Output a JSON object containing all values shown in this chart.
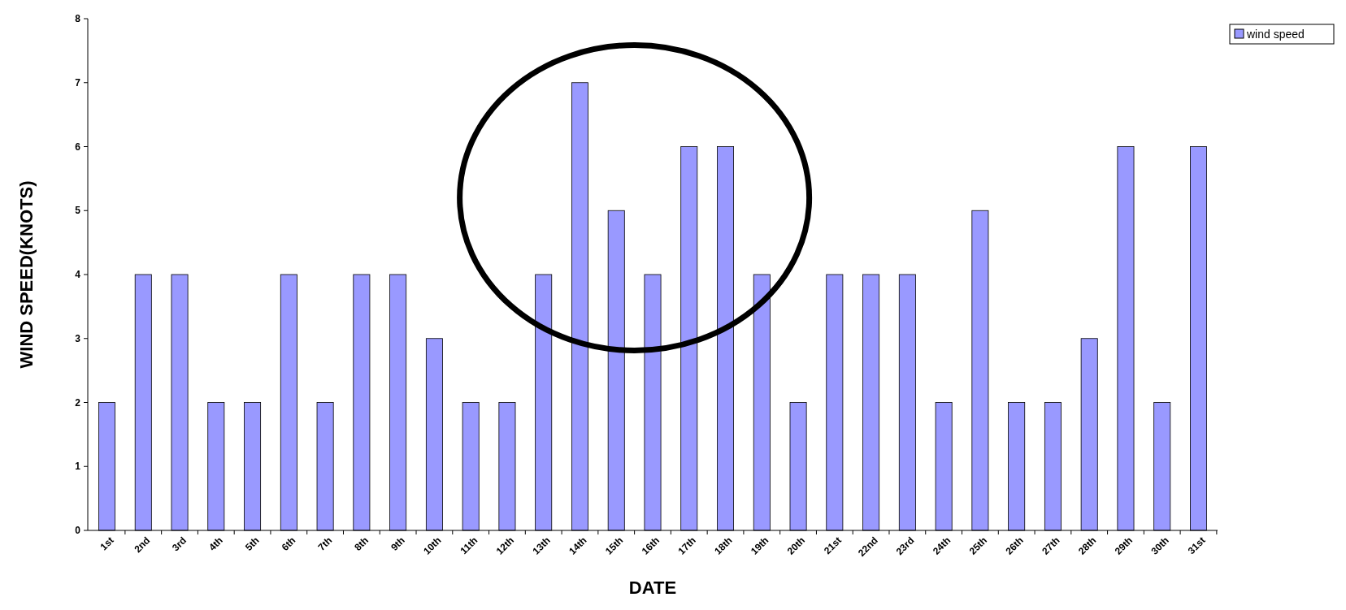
{
  "chart_data": {
    "type": "bar",
    "xlabel": "DATE",
    "ylabel": "WIND SPEED(KNOTS)",
    "categories": [
      "1st",
      "2nd",
      "3rd",
      "4th",
      "5th",
      "6th",
      "7th",
      "8th",
      "9th",
      "10th",
      "11th",
      "12th",
      "13th",
      "14th",
      "15th",
      "16th",
      "17th",
      "18th",
      "19th",
      "20th",
      "21st",
      "22nd",
      "23rd",
      "24th",
      "25th",
      "26th",
      "27th",
      "28th",
      "29th",
      "30th",
      "31st"
    ],
    "series": [
      {
        "name": "wind speed",
        "color": "#9999ff",
        "values": [
          2,
          4,
          4,
          2,
          2,
          4,
          2,
          4,
          4,
          3,
          2,
          2,
          4,
          7,
          5,
          4,
          6,
          6,
          4,
          2,
          4,
          4,
          4,
          2,
          5,
          2,
          2,
          3,
          6,
          2,
          6
        ]
      }
    ],
    "ylim": [
      0,
      8
    ],
    "yticks": [
      0,
      1,
      2,
      3,
      4,
      5,
      6,
      7,
      8
    ],
    "grid": false,
    "legend": "top right"
  }
}
